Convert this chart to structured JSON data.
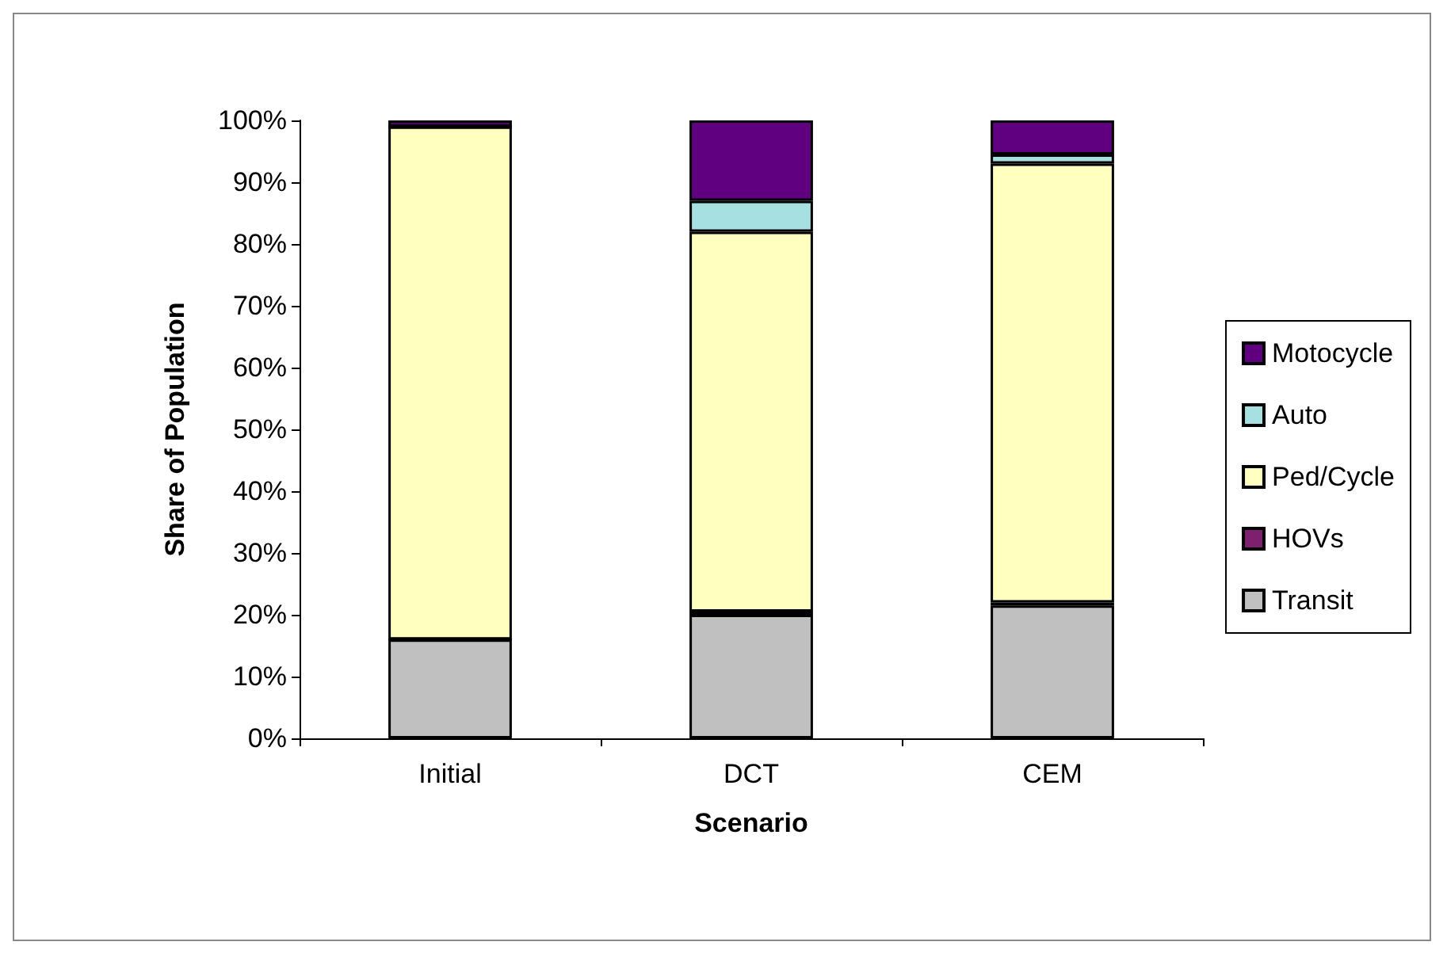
{
  "chart_data": {
    "type": "bar",
    "stacked": true,
    "xlabel": "Scenario",
    "ylabel": "Share of Population",
    "categories": [
      "Initial",
      "DCT",
      "CEM"
    ],
    "series": [
      {
        "name": "Transit",
        "color": "#c0c0c0",
        "values": [
          16,
          20,
          21.5
        ]
      },
      {
        "name": "HOVs",
        "color": "#7f1f6f",
        "values": [
          0,
          0.5,
          0.5
        ]
      },
      {
        "name": "Ped/Cycle",
        "color": "#ffffc0",
        "values": [
          83,
          61.5,
          71
        ]
      },
      {
        "name": "Auto",
        "color": "#a6e0e0",
        "values": [
          0,
          5,
          1.5
        ]
      },
      {
        "name": "Motocycle",
        "color": "#600080",
        "values": [
          1,
          13,
          5.5
        ]
      }
    ],
    "ylim": [
      0,
      100
    ],
    "yticks": [
      {
        "value": 0,
        "label": "0%"
      },
      {
        "value": 10,
        "label": "10%"
      },
      {
        "value": 20,
        "label": "20%"
      },
      {
        "value": 30,
        "label": "30%"
      },
      {
        "value": 40,
        "label": "40%"
      },
      {
        "value": 50,
        "label": "50%"
      },
      {
        "value": 60,
        "label": "60%"
      },
      {
        "value": 70,
        "label": "70%"
      },
      {
        "value": 80,
        "label": "80%"
      },
      {
        "value": 90,
        "label": "90%"
      },
      {
        "value": 100,
        "label": "100%"
      }
    ],
    "grid": false,
    "legend": "right"
  }
}
